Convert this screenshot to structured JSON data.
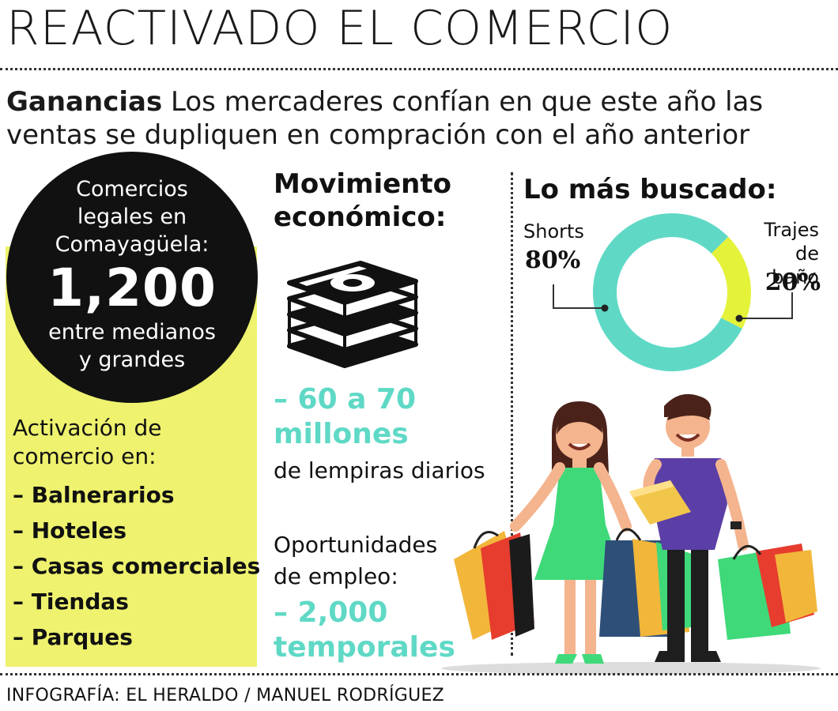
{
  "header": {
    "title": "REACTIVADO EL COMERCIO",
    "subtitle_bold": "Ganancias",
    "subtitle_text": " Los mercaderes confían en que este año las ventas se dupliquen en compración con el año anterior"
  },
  "comercios": {
    "line1": "Comercios",
    "line2": "legales en",
    "line3": "Comayagüela:",
    "number": "1,200",
    "line4": "entre medianos",
    "line5": "y grandes"
  },
  "activacion": {
    "label_line1": "Activación de",
    "label_line2": "comercio en:",
    "items": [
      "– Balnerarios",
      "– Hoteles",
      "– Casas comerciales",
      "– Tiendas",
      "– Parques"
    ]
  },
  "movimiento": {
    "title_line1": "Movimiento",
    "title_line2": "económico:",
    "money_icon": "money-stack-icon",
    "amount_line1": "– 60 a 70",
    "amount_line2": "millones",
    "amount_desc": "de lempiras diarios",
    "empleo_line1": "Oportunidades",
    "empleo_line2": "de empleo:",
    "empleo_line3": "– 2,000",
    "empleo_line4": "temporales"
  },
  "buscado": {
    "title": "Lo más buscado:"
  },
  "chart_data": {
    "type": "pie",
    "title": "Lo más buscado:",
    "categories": [
      "Shorts",
      "Trajes de baño"
    ],
    "values": [
      80,
      20
    ],
    "value_labels": [
      "80%",
      "20%"
    ],
    "colors": [
      "#5fd9c6",
      "#e4f23a"
    ]
  },
  "illustration": {
    "icon": "shoppers-illustration-icon"
  },
  "credit": "INFOGRAFÍA: EL HERALDO / MANUEL RODRÍGUEZ",
  "colors": {
    "accent_teal": "#5fd9c6",
    "accent_yellow": "#eef26e",
    "lime": "#e4f23a",
    "dark": "#111111"
  }
}
